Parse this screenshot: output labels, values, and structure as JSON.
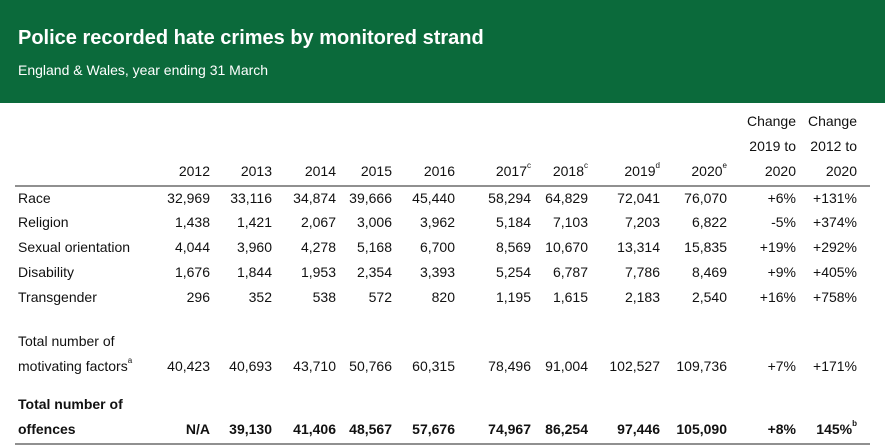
{
  "header": {
    "title": "Police recorded hate crimes by monitored strand",
    "subtitle": "England & Wales, year ending 31 March"
  },
  "table": {
    "columns": [
      {
        "lines": [
          "2012"
        ]
      },
      {
        "lines": [
          "2013"
        ]
      },
      {
        "lines": [
          "2014"
        ]
      },
      {
        "lines": [
          "2015"
        ]
      },
      {
        "lines": [
          "2016"
        ]
      },
      {
        "lines": [
          "2017"
        ],
        "sup": "c"
      },
      {
        "lines": [
          "2018"
        ],
        "sup": "c"
      },
      {
        "lines": [
          "2019"
        ],
        "sup": "d"
      },
      {
        "lines": [
          "2020"
        ],
        "sup": "e"
      },
      {
        "lines": [
          "Change",
          "2019 to",
          "2020"
        ]
      },
      {
        "lines": [
          "Change",
          "2012 to",
          "2020"
        ]
      }
    ],
    "rows": [
      {
        "label": [
          "Race"
        ],
        "values": [
          "32,969",
          "33,116",
          "34,874",
          "39,666",
          "45,440",
          "58,294",
          "64,829",
          "72,041",
          "76,070",
          "+6%",
          "+131%"
        ]
      },
      {
        "label": [
          "Religion"
        ],
        "values": [
          "1,438",
          "1,421",
          "2,067",
          "3,006",
          "3,962",
          "5,184",
          "7,103",
          "7,203",
          "6,822",
          "-5%",
          "+374%"
        ]
      },
      {
        "label": [
          "Sexual orientation"
        ],
        "values": [
          "4,044",
          "3,960",
          "4,278",
          "5,168",
          "6,700",
          "8,569",
          "10,670",
          "13,314",
          "15,835",
          "+19%",
          "+292%"
        ]
      },
      {
        "label": [
          "Disability"
        ],
        "values": [
          "1,676",
          "1,844",
          "1,953",
          "2,354",
          "3,393",
          "5,254",
          "6,787",
          "7,786",
          "8,469",
          "+9%",
          "+405%"
        ]
      },
      {
        "label": [
          "Transgender"
        ],
        "values": [
          "296",
          "352",
          "538",
          "572",
          "820",
          "1,195",
          "1,615",
          "2,183",
          "2,540",
          "+16%",
          "+758%"
        ]
      },
      {
        "label": [
          "Total number of",
          "motivating factors"
        ],
        "sup": "a",
        "values": [
          "40,423",
          "40,693",
          "43,710",
          "50,766",
          "60,315",
          "78,496",
          "91,004",
          "102,527",
          "109,736",
          "+7%",
          "+171%"
        ]
      },
      {
        "label": [
          "Total number of",
          "offences"
        ],
        "bold": true,
        "values": [
          "N/A",
          "39,130",
          "41,406",
          "48,567",
          "57,676",
          "74,967",
          "86,254",
          "97,446",
          "105,090",
          "+8%",
          {
            "text": "145%",
            "sup": "b"
          }
        ]
      }
    ]
  }
}
